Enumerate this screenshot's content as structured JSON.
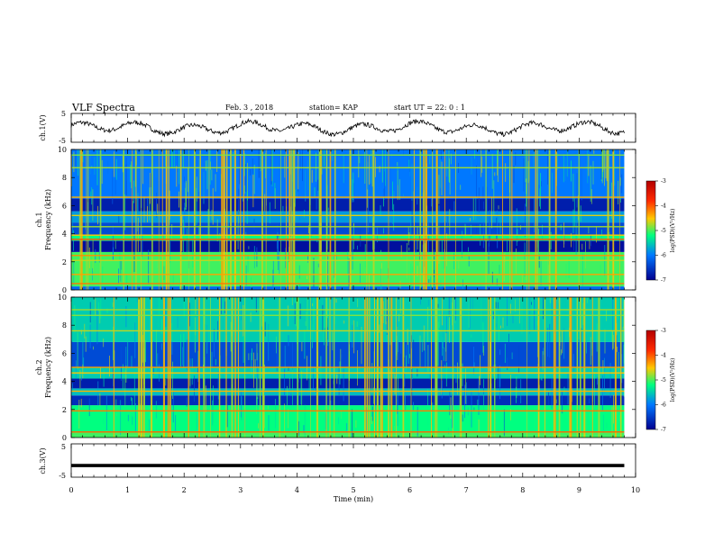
{
  "header": {
    "title": "VLF Spectra",
    "date": "Feb. 3 , 2018",
    "station": "station= KAP",
    "start": "start  UT =  22: 0  : 1"
  },
  "panels": {
    "ch1_wave_label": "ch.1(V)",
    "ch1_spec_label_a": "ch.1",
    "ch1_spec_label_b": "Frequency (kHz)",
    "ch2_spec_label_a": "ch.2",
    "ch2_spec_label_b": "Frequency (kHz)",
    "ch3_wave_label": "ch.3(V)",
    "xlabel": "Time  (min)"
  },
  "colorbar": {
    "label": "log(PSD)(V²/Hz)",
    "ticks": [
      "-3",
      "-4",
      "-5",
      "-6",
      "-7"
    ],
    "colors": [
      "#b40000",
      "#ff2a00",
      "#ffc800",
      "#00ff80",
      "#0078ff",
      "#000090"
    ]
  },
  "chart_data": [
    {
      "type": "line",
      "name": "ch1 waveform",
      "ylabel": "ch.1(V)",
      "ylim": [
        -5,
        5
      ],
      "yticks": [
        "5",
        "-5"
      ],
      "xlim": [
        0,
        10
      ],
      "x_end": 9.8,
      "summary": "oscillating signal, roughly -2.5 to 2.5 V, ~1 min period"
    },
    {
      "type": "heatmap",
      "name": "ch1 spectrogram",
      "ylabel": "Frequency (kHz)",
      "ylim": [
        0,
        10
      ],
      "yticks": [
        "0",
        "2",
        "4",
        "6",
        "8",
        "10"
      ],
      "xlim": [
        0,
        10
      ],
      "x_end": 9.8,
      "bands": [
        {
          "f0": 0.0,
          "f1": 0.25,
          "level": -6.3
        },
        {
          "f0": 0.25,
          "f1": 2.7,
          "level": -5.2
        },
        {
          "f0": 2.7,
          "f1": 3.5,
          "level": -6.9
        },
        {
          "f0": 3.5,
          "f1": 3.9,
          "level": -5.4
        },
        {
          "f0": 3.9,
          "f1": 4.8,
          "level": -6.5
        },
        {
          "f0": 4.8,
          "f1": 5.6,
          "level": -6.0
        },
        {
          "f0": 5.6,
          "f1": 6.5,
          "level": -6.8
        },
        {
          "f0": 6.5,
          "f1": 10.0,
          "level": -6.2
        }
      ],
      "lines": [
        {
          "f": 0.45,
          "level": -4.2
        },
        {
          "f": 1.1,
          "level": -4.4
        },
        {
          "f": 2.1,
          "level": -4.8
        },
        {
          "f": 2.45,
          "level": -4.3
        },
        {
          "f": 3.6,
          "level": -4.0
        },
        {
          "f": 3.9,
          "level": -4.6
        },
        {
          "f": 4.5,
          "level": -4.9
        },
        {
          "f": 5.3,
          "level": -4.7
        },
        {
          "f": 6.6,
          "level": -4.5
        },
        {
          "f": 8.7,
          "level": -4.9
        },
        {
          "f": 9.6,
          "level": -5.0
        }
      ]
    },
    {
      "type": "heatmap",
      "name": "ch2 spectrogram",
      "ylabel": "Frequency (kHz)",
      "ylim": [
        0,
        10
      ],
      "yticks": [
        "0",
        "2",
        "4",
        "6",
        "8",
        "10"
      ],
      "xlim": [
        0,
        10
      ],
      "x_end": 9.8,
      "bands": [
        {
          "f0": 0.0,
          "f1": 0.4,
          "level": -5.2
        },
        {
          "f0": 0.4,
          "f1": 2.3,
          "level": -5.4
        },
        {
          "f0": 2.3,
          "f1": 3.0,
          "level": -6.7
        },
        {
          "f0": 3.0,
          "f1": 3.5,
          "level": -5.8
        },
        {
          "f0": 3.5,
          "f1": 4.2,
          "level": -6.8
        },
        {
          "f0": 4.2,
          "f1": 5.0,
          "level": -5.7
        },
        {
          "f0": 5.0,
          "f1": 6.8,
          "level": -6.5
        },
        {
          "f0": 6.8,
          "f1": 10.0,
          "level": -5.7
        }
      ],
      "lines": [
        {
          "f": 0.4,
          "level": -4.1
        },
        {
          "f": 1.9,
          "level": -4.2
        },
        {
          "f": 3.3,
          "level": -4.5
        },
        {
          "f": 4.6,
          "level": -4.6
        },
        {
          "f": 5.0,
          "level": -4.4
        },
        {
          "f": 7.6,
          "level": -4.8
        },
        {
          "f": 8.7,
          "level": -5.0
        },
        {
          "f": 9.1,
          "level": -4.9
        }
      ]
    },
    {
      "type": "line",
      "name": "ch3 waveform",
      "ylabel": "ch.3(V)",
      "ylim": [
        -5,
        5
      ],
      "yticks": [
        "5",
        "-5"
      ],
      "xlim": [
        0,
        10
      ],
      "x_end": 9.8,
      "summary": "flat line near -1.5 V"
    }
  ],
  "x_axis": {
    "ticks": [
      "0",
      "1",
      "2",
      "3",
      "4",
      "5",
      "6",
      "7",
      "8",
      "9",
      "10"
    ]
  }
}
